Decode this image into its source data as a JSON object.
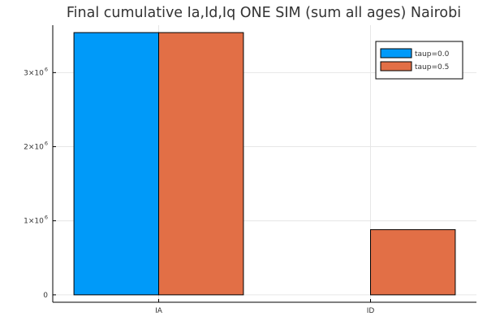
{
  "chart_data": {
    "type": "bar",
    "title": "Final cumulative Ia,Id,Iq ONE SIM (sum all ages) Nairobi",
    "xlabel": "",
    "ylabel": "",
    "categories": [
      "IA",
      "ID"
    ],
    "series": [
      {
        "name": "taup=0.0",
        "color": "#009AF9",
        "values": [
          3540000,
          0
        ]
      },
      {
        "name": "taup=0.5",
        "color": "#E26F46",
        "values": [
          3540000,
          880000
        ]
      }
    ],
    "yticks": [
      {
        "value": 0,
        "mantissa": "0",
        "exponent": ""
      },
      {
        "value": 1000000,
        "mantissa": "1×10",
        "exponent": "6"
      },
      {
        "value": 2000000,
        "mantissa": "2×10",
        "exponent": "6"
      },
      {
        "value": 3000000,
        "mantissa": "3×10",
        "exponent": "6"
      }
    ],
    "ylim": [
      -100000,
      3640000
    ],
    "grid": true,
    "legend_position": "top-right"
  }
}
